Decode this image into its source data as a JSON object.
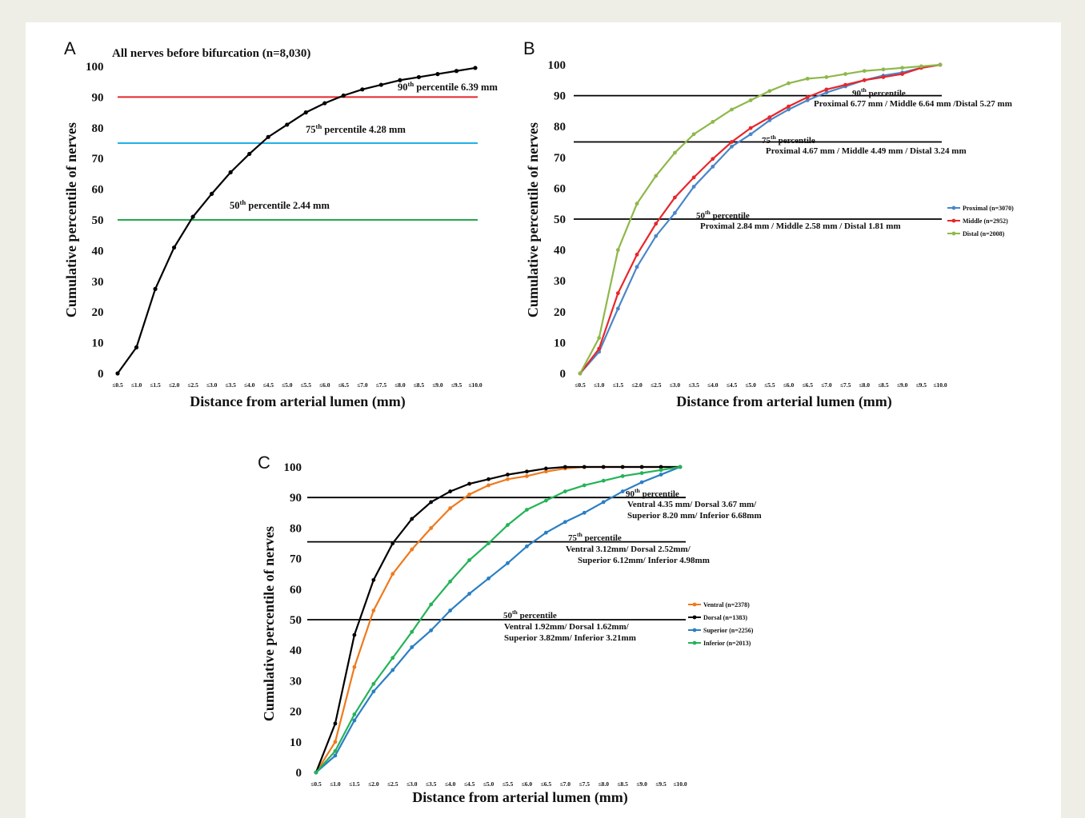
{
  "chart_data": [
    {
      "panel": "A",
      "type": "line",
      "title": "All nerves before bifurcation (n=8,030)",
      "xlabel": "Distance from arterial lumen (mm)",
      "ylabel": "Cumulative percentile of nerves",
      "categories": [
        "≤0.5",
        "≤1.0",
        "≤1.5",
        "≤2.0",
        "≤2.5",
        "≤3.0",
        "≤3.5",
        "≤4.0",
        "≤4.5",
        "≤5.0",
        "≤5.5",
        "≤6.0",
        "≤6.5",
        "≤7.0",
        "≤7.5",
        "≤8.0",
        "≤8.5",
        "≤9.0",
        "≤9.5",
        "≤10.0"
      ],
      "ylim": [
        0,
        100
      ],
      "yticks": [
        "0",
        "10",
        "20",
        "30",
        "40",
        "50",
        "60",
        "70",
        "80",
        "90",
        "100"
      ],
      "series": [
        {
          "color": "#000000",
          "values": [
            0,
            8.5,
            27.5,
            41,
            51,
            58.5,
            65.5,
            71.5,
            77,
            81,
            85,
            88,
            90.5,
            92.5,
            94,
            95.5,
            96.5,
            97.5,
            98.5,
            99.5
          ]
        }
      ],
      "reference_lines": [
        {
          "y": 90,
          "color": "#e8262a",
          "sup": "th",
          "head": "90",
          "tail": " percentile  6.39 mm"
        },
        {
          "y": 75,
          "color": "#1fb2e8",
          "sup": "th",
          "head": "75",
          "tail": " percentile 4.28 mm"
        },
        {
          "y": 50,
          "color": "#23a84a",
          "sup": "th",
          "head": "50",
          "tail": " percentile 2.44 mm"
        }
      ],
      "grid": false
    },
    {
      "panel": "B",
      "type": "line",
      "xlabel": "Distance from arterial lumen (mm)",
      "ylabel": "Cumulative percentile of nerves",
      "categories": [
        "≤0.5",
        "≤1.0",
        "≤1.5",
        "≤2.0",
        "≤2.5",
        "≤3.0",
        "≤3.5",
        "≤4.0",
        "≤4.5",
        "≤5.0",
        "≤5.5",
        "≤6.0",
        "≤6.5",
        "≤7.0",
        "≤7.5",
        "≤8.0",
        "≤8.5",
        "≤9.0",
        "≤9.5",
        "≤10.0"
      ],
      "ylim": [
        0,
        100
      ],
      "yticks": [
        "0",
        "10",
        "20",
        "30",
        "40",
        "50",
        "60",
        "70",
        "80",
        "90",
        "100"
      ],
      "series": [
        {
          "name": "Proximal (n=3070)",
          "color": "#4a86c8",
          "values": [
            0,
            7,
            21,
            34.5,
            44.5,
            52,
            60.5,
            67,
            73.5,
            77.5,
            82,
            85.5,
            88.5,
            91,
            93,
            95,
            96.5,
            97.5,
            99,
            100
          ]
        },
        {
          "name": "Middle (n=2952)",
          "color": "#e8262a",
          "values": [
            0,
            8,
            26,
            38.5,
            48.5,
            57,
            63.5,
            69.5,
            75,
            79.5,
            83,
            86.5,
            89.5,
            92,
            93.5,
            95,
            96,
            97,
            99,
            100
          ]
        },
        {
          "name": "Distal (n=2008)",
          "color": "#8fb84a",
          "values": [
            0,
            11.5,
            40,
            55,
            64,
            71.5,
            77.5,
            81.5,
            85.5,
            88.5,
            91.5,
            94,
            95.5,
            96,
            97,
            98,
            98.5,
            99,
            99.5,
            100
          ]
        }
      ],
      "reference_lines": [
        {
          "y": 90,
          "color": "#000000",
          "sup": "th",
          "head": "90",
          "tail": " percentile",
          "detail": "Proximal 6.77 mm / Middle 6.64 mm /Distal 5.27 mm"
        },
        {
          "y": 75,
          "color": "#000000",
          "sup": "th",
          "head": "75",
          "tail": " percentile",
          "detail": "Proximal 4.67 mm / Middle 4.49 mm / Distal 3.24 mm"
        },
        {
          "y": 50,
          "color": "#000000",
          "sup": "th",
          "head": "50",
          "tail": " percentile",
          "detail": "Proximal 2.84 mm / Middle 2.58 mm / Distal 1.81 mm"
        }
      ],
      "legend": "right",
      "grid": false
    },
    {
      "panel": "C",
      "type": "line",
      "xlabel": "Distance from arterial lumen (mm)",
      "ylabel": "Cumulative percentile of nerves",
      "categories": [
        "≤0.5",
        "≤1.0",
        "≤1.5",
        "≤2.0",
        "≤2.5",
        "≤3.0",
        "≤3.5",
        "≤4.0",
        "≤4.5",
        "≤5.0",
        "≤5.5",
        "≤6.0",
        "≤6.5",
        "≤7.0",
        "≤7.5",
        "≤8.0",
        "≤8.5",
        "≤9.0",
        "≤9.5",
        "≤10.0"
      ],
      "ylim": [
        0,
        100
      ],
      "yticks": [
        "0",
        "10",
        "20",
        "30",
        "40",
        "50",
        "60",
        "70",
        "80",
        "90",
        "100"
      ],
      "series": [
        {
          "name": "Ventral (n=2378)",
          "color": "#ee7a1e",
          "values": [
            0,
            10,
            34.5,
            53,
            65,
            73,
            80,
            86.5,
            91,
            94,
            96,
            97,
            98.5,
            99.5,
            100,
            100,
            100,
            100,
            100,
            100
          ]
        },
        {
          "name": "Dorsal (n=1383)",
          "color": "#000000",
          "values": [
            0,
            16,
            45,
            63,
            75,
            83,
            88.5,
            92,
            94.5,
            96,
            97.5,
            98.5,
            99.5,
            100,
            100,
            100,
            100,
            100,
            100,
            100
          ]
        },
        {
          "name": "Superior (n=2256)",
          "color": "#2a7fc4",
          "values": [
            0,
            5.5,
            17,
            26.5,
            33.5,
            41,
            46.5,
            53,
            58.5,
            63.5,
            68.5,
            74,
            78.5,
            82,
            85,
            88.5,
            92,
            95,
            97.5,
            100
          ]
        },
        {
          "name": "Inferior (n=2013)",
          "color": "#24b358",
          "values": [
            0,
            7,
            19,
            29,
            37.5,
            46,
            55,
            62.5,
            69.5,
            75,
            81,
            86,
            89,
            92,
            94,
            95.5,
            97,
            98,
            99,
            100
          ]
        }
      ],
      "reference_lines": [
        {
          "y": 90,
          "color": "#000000",
          "sup": "th",
          "head": "90",
          "tail": " percentile",
          "detail": "Ventral 4.35 mm/ Dorsal 3.67 mm/",
          "detail2": "Superior 8.20 mm/ Inferior 6.68mm"
        },
        {
          "y": 75.5,
          "color": "#000000",
          "sup": "th",
          "head": "75",
          "tail": " percentile",
          "detail": "Ventral 3.12mm/ Dorsal 2.52mm/",
          "detail2": "Superior 6.12mm/ Inferior 4.98mm"
        },
        {
          "y": 50,
          "color": "#000000",
          "sup": "th",
          "head": "50",
          "tail": " percentile",
          "detail": "Ventral 1.92mm/ Dorsal 1.62mm/",
          "detail2": "Superior 3.82mm/ Inferior 3.21mm"
        }
      ],
      "legend": "right",
      "grid": false
    }
  ]
}
